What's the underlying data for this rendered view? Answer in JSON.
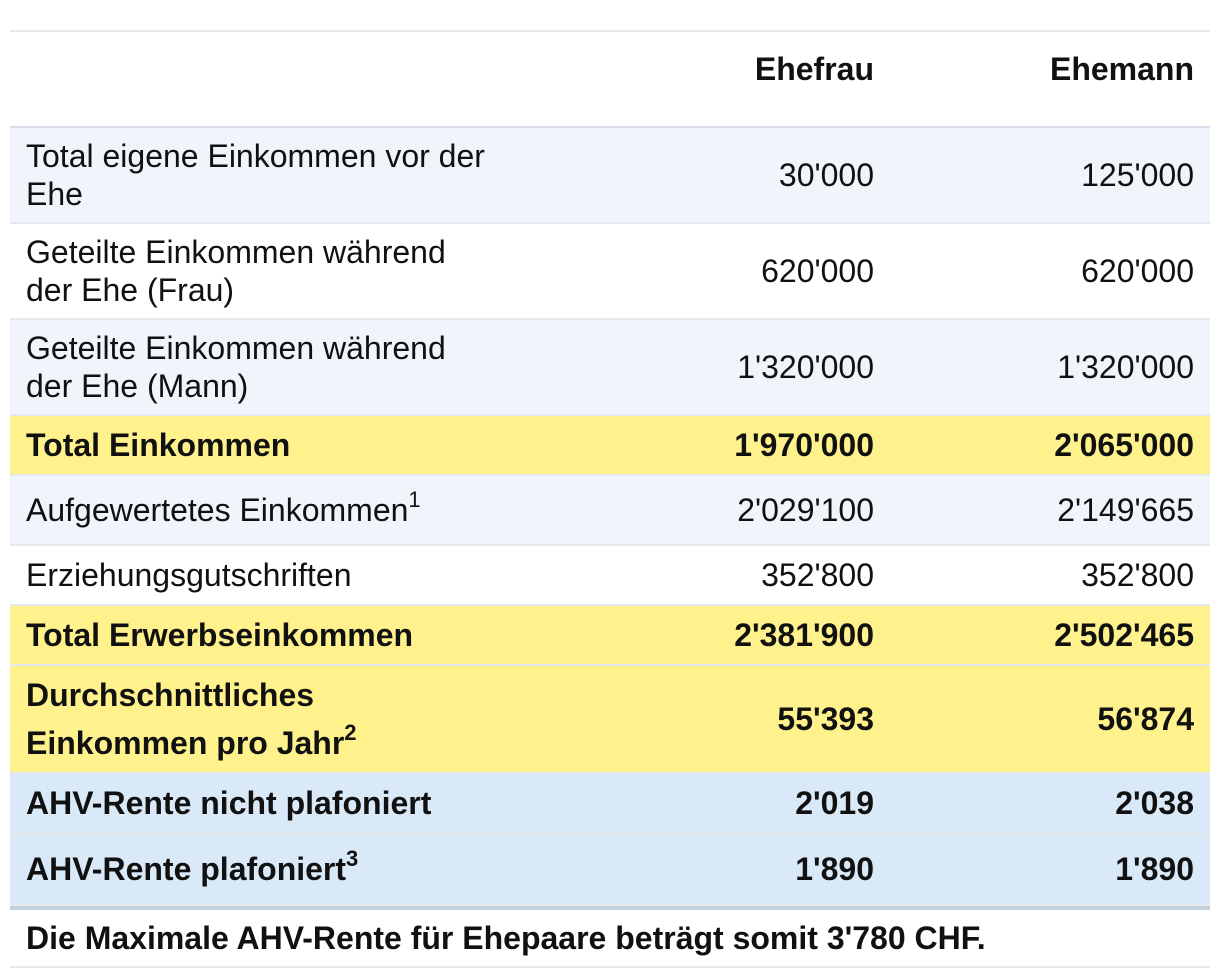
{
  "header": {
    "col1": "",
    "col2": "Ehefrau",
    "col3": "Ehemann"
  },
  "rows": [
    {
      "label_line1": "Total eigene Einkommen vor der",
      "label_line2": "Ehe",
      "ehefrau": "30'000",
      "ehemann": "125'000"
    },
    {
      "label_line1": "Geteilte Einkommen während",
      "label_line2": "der Ehe (Frau)",
      "ehefrau": "620'000",
      "ehemann": "620'000"
    },
    {
      "label_line1": "Geteilte Einkommen während",
      "label_line2": "der Ehe (Mann)",
      "ehefrau": "1'320'000",
      "ehemann": "1'320'000"
    },
    {
      "label": "Total Einkommen",
      "ehefrau": "1'970'000",
      "ehemann": "2'065'000"
    },
    {
      "label": "Aufgewertetes Einkommen",
      "sup": "1",
      "ehefrau": "2'029'100",
      "ehemann": "2'149'665"
    },
    {
      "label": "Erziehungsgutschriften",
      "ehefrau": "352'800",
      "ehemann": "352'800"
    },
    {
      "label": "Total Erwerbseinkommen",
      "ehefrau": "2'381'900",
      "ehemann": "2'502'465"
    },
    {
      "label_line1": "Durchschnittliches",
      "label_line2": "Einkommen pro Jahr",
      "sup": "2",
      "ehefrau": "55'393",
      "ehemann": "56'874"
    },
    {
      "label": "AHV-Rente nicht plafoniert",
      "ehefrau": "2'019",
      "ehemann": "2'038"
    },
    {
      "label": "AHV-Rente plafoniert",
      "sup": "3",
      "ehefrau": "1'890",
      "ehemann": "1'890"
    }
  ],
  "footer": "Die Maximale AHV-Rente für Ehepaare beträgt somit 3'780 CHF.",
  "colors": {
    "highlight_yellow": "#fff28d",
    "highlight_blue": "#d9e9f8",
    "row_light": "#f0f5fc"
  }
}
